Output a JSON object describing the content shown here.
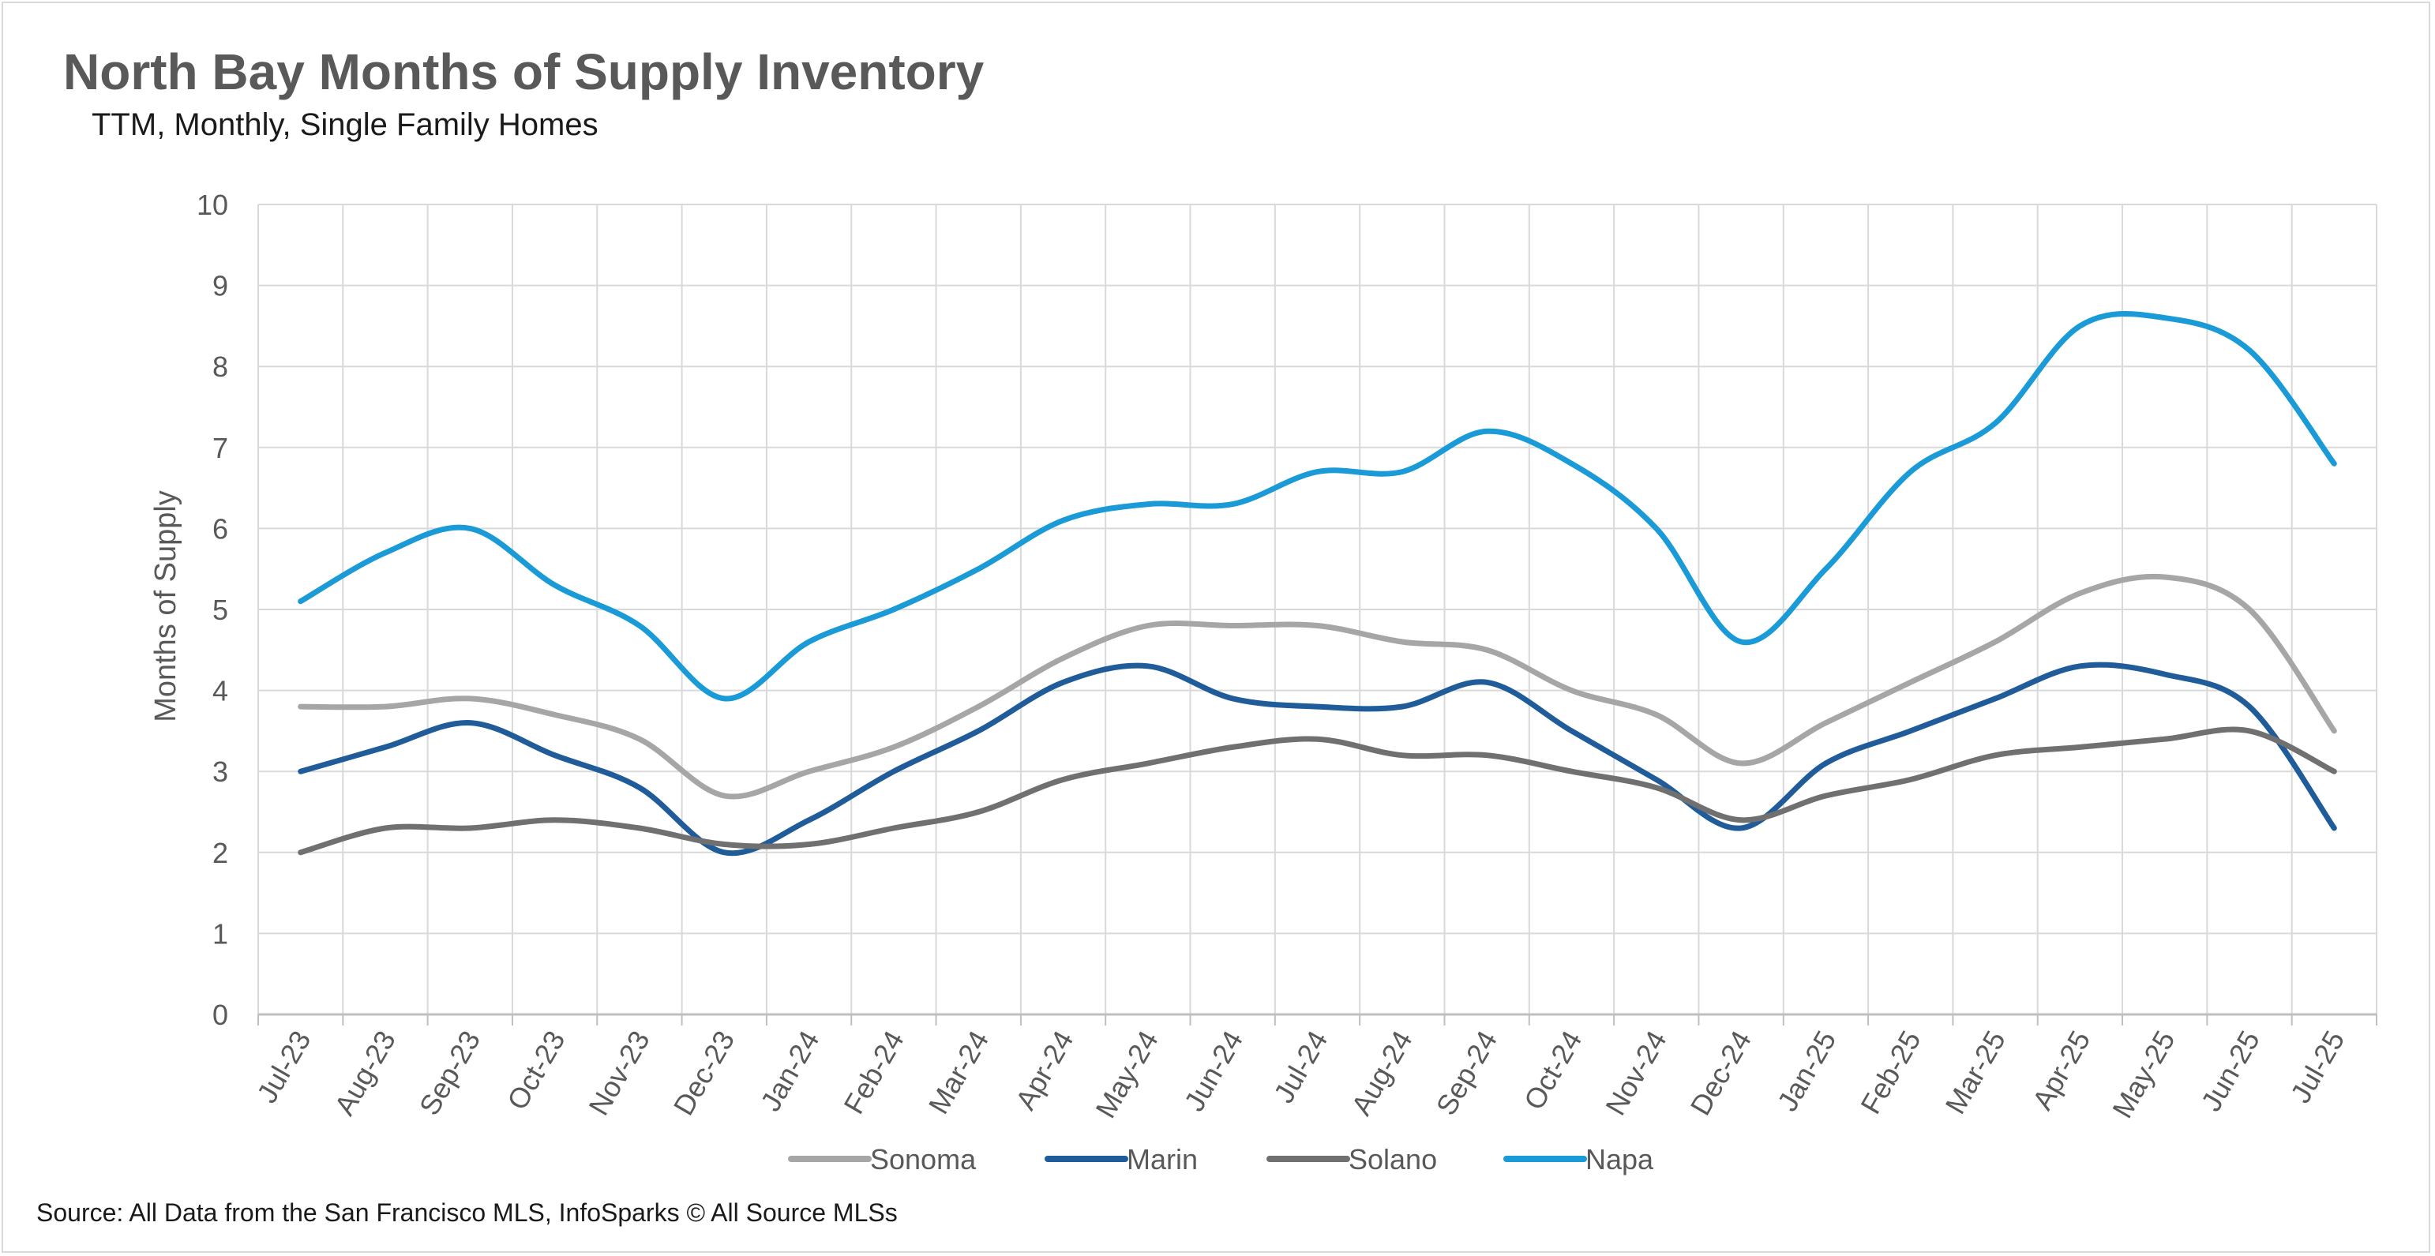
{
  "title": "North Bay Months of Supply Inventory",
  "subtitle": "TTM, Monthly, Single Family Homes",
  "source": "Source: All Data from the San Francisco MLS, InfoSparks © All Source MLSs",
  "chart_data": {
    "type": "line",
    "ylabel": "Months of Supply",
    "xlabel": "",
    "ylim": [
      0,
      10
    ],
    "yticks": [
      0,
      1,
      2,
      3,
      4,
      5,
      6,
      7,
      8,
      9,
      10
    ],
    "grid": true,
    "legend_position": "bottom",
    "categories": [
      "Jul-23",
      "Aug-23",
      "Sep-23",
      "Oct-23",
      "Nov-23",
      "Dec-23",
      "Jan-24",
      "Feb-24",
      "Mar-24",
      "Apr-24",
      "May-24",
      "Jun-24",
      "Jul-24",
      "Aug-24",
      "Sep-24",
      "Oct-24",
      "Nov-24",
      "Dec-24",
      "Jan-25",
      "Feb-25",
      "Mar-25",
      "Apr-25",
      "May-25",
      "Jun-25",
      "Jul-25"
    ],
    "series": [
      {
        "name": "Sonoma",
        "color": "#a6a6a6",
        "values": [
          3.8,
          3.8,
          3.9,
          3.7,
          3.4,
          2.7,
          3.0,
          3.3,
          3.8,
          4.4,
          4.8,
          4.8,
          4.8,
          4.6,
          4.5,
          4.0,
          3.7,
          3.1,
          3.6,
          4.1,
          4.6,
          5.2,
          5.4,
          5.0,
          3.5
        ]
      },
      {
        "name": "Marin",
        "color": "#1f5c99",
        "values": [
          3.0,
          3.3,
          3.6,
          3.2,
          2.8,
          2.0,
          2.4,
          3.0,
          3.5,
          4.1,
          4.3,
          3.9,
          3.8,
          3.8,
          4.1,
          3.5,
          2.9,
          2.3,
          3.1,
          3.5,
          3.9,
          4.3,
          4.2,
          3.8,
          2.3
        ]
      },
      {
        "name": "Solano",
        "color": "#707070",
        "values": [
          2.0,
          2.3,
          2.3,
          2.4,
          2.3,
          2.1,
          2.1,
          2.3,
          2.5,
          2.9,
          3.1,
          3.3,
          3.4,
          3.2,
          3.2,
          3.0,
          2.8,
          2.4,
          2.7,
          2.9,
          3.2,
          3.3,
          3.4,
          3.5,
          3.0
        ]
      },
      {
        "name": "Napa",
        "color": "#1a9ad6",
        "values": [
          5.1,
          5.7,
          6.0,
          5.3,
          4.8,
          3.9,
          4.6,
          5.0,
          5.5,
          6.1,
          6.3,
          6.3,
          6.7,
          6.7,
          7.2,
          6.8,
          6.0,
          4.6,
          5.5,
          6.7,
          7.3,
          8.5,
          8.6,
          8.2,
          6.8
        ]
      }
    ]
  }
}
